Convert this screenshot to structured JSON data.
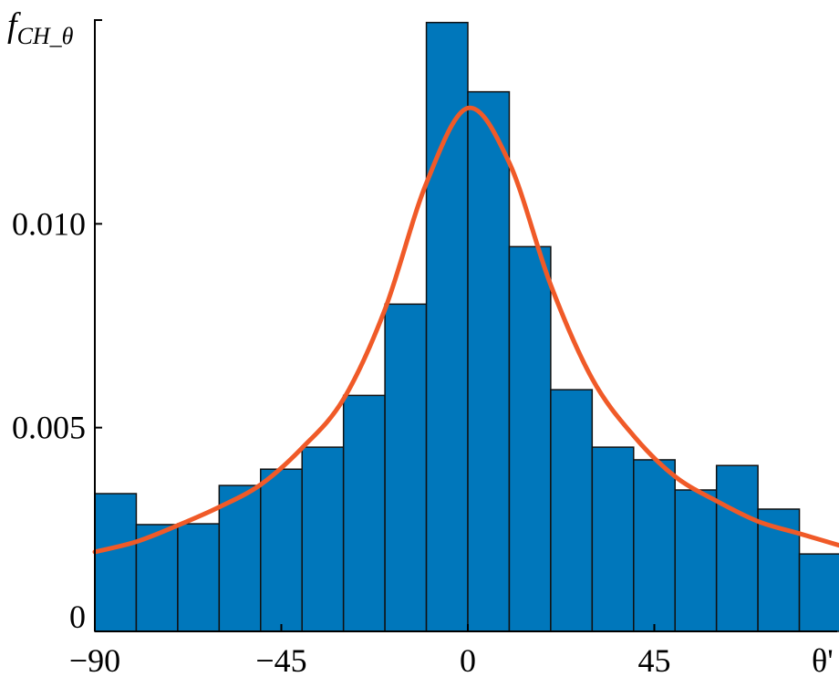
{
  "chart_data": {
    "type": "bar",
    "ylabel": "f",
    "ylabel_sub": "CH_θ",
    "xlabel": "θ'",
    "xlim": [
      -90,
      90
    ],
    "ylim": [
      0,
      0.015
    ],
    "grid": false,
    "x_ticks": [
      -90,
      -45,
      0,
      45
    ],
    "x_tick_labels": [
      "−90",
      "−45",
      "0",
      "45"
    ],
    "y_ticks": [
      0,
      0.005,
      0.01
    ],
    "y_tick_labels": [
      "0",
      "0.005",
      "0.010"
    ],
    "bin_edges": [
      -90,
      -80,
      -70,
      -60,
      -50,
      -40,
      -30,
      -20,
      -10,
      0,
      10,
      20,
      30,
      40,
      50,
      60,
      70,
      80,
      90
    ],
    "values": [
      0.00338,
      0.00262,
      0.00264,
      0.00358,
      0.00398,
      0.00452,
      0.00579,
      0.00803,
      0.01494,
      0.01324,
      0.00944,
      0.00593,
      0.00452,
      0.00421,
      0.00347,
      0.00407,
      0.003,
      0.0019
    ],
    "bar_color": "#0077bb",
    "curve": {
      "color": "#f05a28",
      "x": [
        -90,
        -80,
        -70,
        -60,
        -50,
        -40,
        -30,
        -20,
        -10,
        0,
        10,
        20,
        30,
        40,
        50,
        60,
        70,
        80,
        90
      ],
      "y": [
        0.00195,
        0.0022,
        0.0026,
        0.00305,
        0.0036,
        0.0045,
        0.0057,
        0.0079,
        0.011,
        0.01284,
        0.0115,
        0.0085,
        0.0062,
        0.0048,
        0.0038,
        0.0032,
        0.0027,
        0.0024,
        0.0021
      ]
    }
  }
}
